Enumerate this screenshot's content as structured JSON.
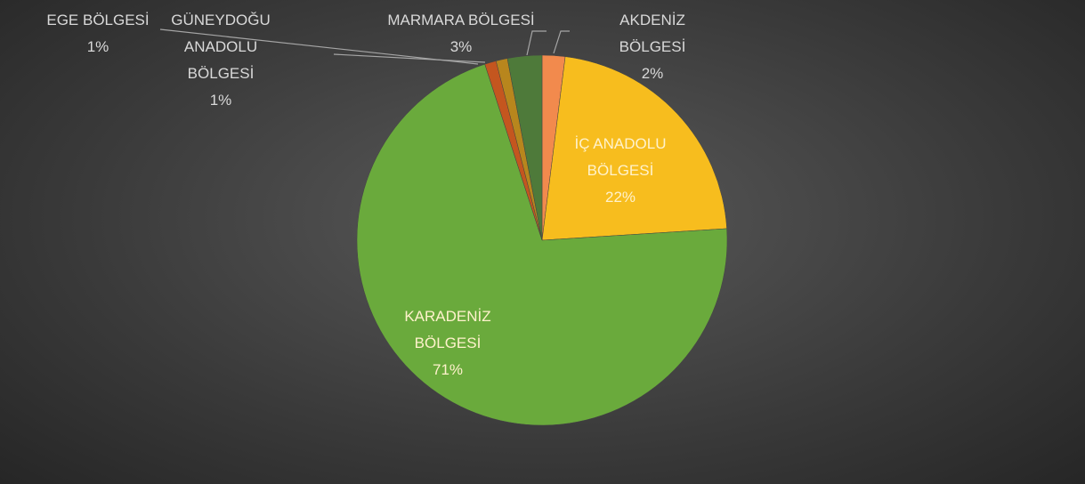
{
  "chart_data": {
    "type": "pie",
    "categories": [
      "AKDENİZ BÖLGESİ",
      "İÇ ANADOLU BÖLGESİ",
      "KARADENİZ BÖLGESİ",
      "EGE BÖLGESİ",
      "GÜNEYDOĞU ANADOLU BÖLGESİ",
      "MARMARA BÖLGESİ"
    ],
    "values": [
      2,
      22,
      71,
      1,
      1,
      3
    ],
    "value_labels": [
      "2%",
      "22%",
      "71%",
      "1%",
      "1%",
      "3%"
    ],
    "colors": [
      "#f28a4d",
      "#f7bd1e",
      "#6aaa3c",
      "#c4561f",
      "#b8861d",
      "#4e7a3a"
    ]
  }
}
